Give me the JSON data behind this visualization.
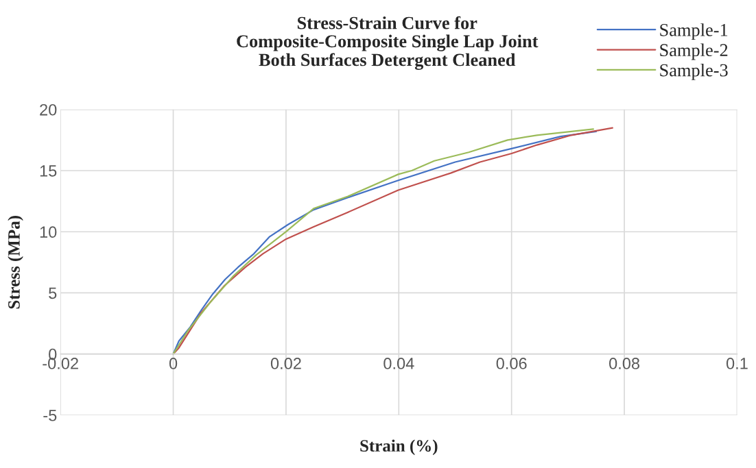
{
  "chart_data": {
    "type": "line",
    "title": "Stress-Strain Curve for\nComposite-Composite Single Lap Joint\nBoth Surfaces Detergent Cleaned",
    "xlabel": "Strain (%)",
    "ylabel": "Stress (MPa)",
    "xlim": [
      -0.02,
      0.1
    ],
    "xticks": [
      -0.02,
      0,
      0.02,
      0.04,
      0.06,
      0.08,
      0.1
    ],
    "ylim": [
      -5,
      20
    ],
    "yticks": [
      -5,
      0,
      5,
      10,
      15,
      20
    ],
    "grid": true,
    "legend": "top right",
    "line_style": "solid",
    "marker": "none",
    "series": [
      {
        "name": "Sample-1",
        "color": "#4472c4",
        "x": [
          0,
          0.001,
          0.003,
          0.005,
          0.007,
          0.0092,
          0.0115,
          0.0143,
          0.0171,
          0.0204,
          0.0249,
          0.031,
          0.0399,
          0.05,
          0.06,
          0.0687,
          0.075
        ],
        "values": [
          0,
          1.06,
          2.2,
          3.6,
          4.9,
          6.1,
          7.1,
          8.2,
          9.6,
          10.6,
          11.8,
          12.8,
          14.2,
          15.7,
          16.8,
          17.8,
          18.2
        ]
      },
      {
        "name": "Sample-2",
        "color": "#c0504d",
        "x": [
          0,
          0.001,
          0.005,
          0.0091,
          0.0128,
          0.0159,
          0.02,
          0.0249,
          0.031,
          0.0399,
          0.0492,
          0.0544,
          0.06,
          0.0645,
          0.0706,
          0.0779
        ],
        "values": [
          0,
          0.5,
          3.4,
          5.6,
          7.1,
          8.2,
          9.4,
          10.4,
          11.6,
          13.4,
          14.8,
          15.7,
          16.4,
          17.1,
          17.9,
          18.5
        ]
      },
      {
        "name": "Sample-3",
        "color": "#9bbb59",
        "x": [
          0,
          0.0026,
          0.0067,
          0.0107,
          0.0147,
          0.02,
          0.0249,
          0.031,
          0.0399,
          0.0423,
          0.0463,
          0.0524,
          0.0593,
          0.0645,
          0.0745
        ],
        "values": [
          0,
          1.9,
          4.3,
          6.4,
          8.1,
          10.0,
          11.9,
          12.9,
          14.7,
          15.0,
          15.8,
          16.5,
          17.5,
          17.9,
          18.4
        ]
      }
    ]
  }
}
